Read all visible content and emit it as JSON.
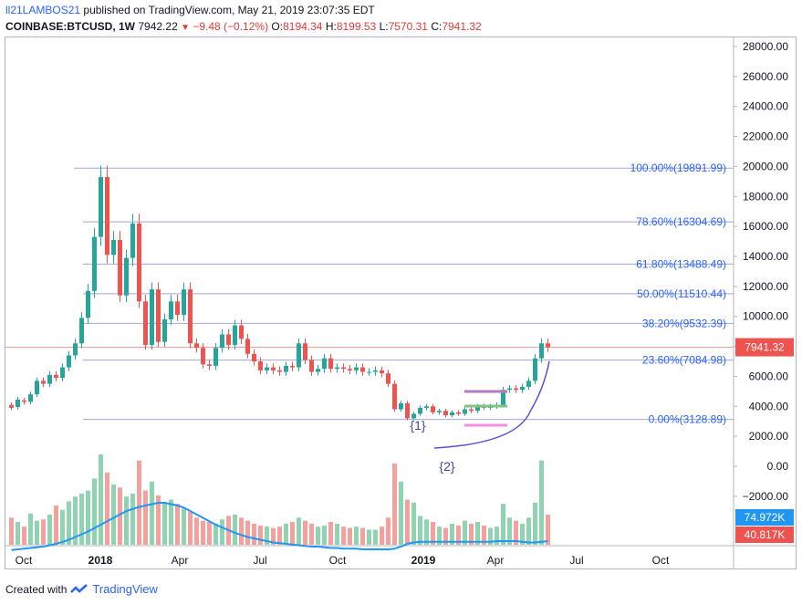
{
  "header": {
    "user": "ll21LAMBOS21",
    "published": "published on TradingView.com, May 21, 2019 23:07:35 EDT",
    "symbol": "COINBASE:BTCUSD, 1W",
    "last": "7942.22",
    "change": "−9.48 (−0.12%)",
    "o_label": "O:",
    "o_val": "8194.34",
    "h_label": "H:",
    "h_val": "8199.53",
    "l_label": "L:",
    "l_val": "7570.31",
    "c_label": "C:",
    "c_val": "7941.32"
  },
  "footer": {
    "created": "Created with",
    "brand": "TradingView"
  },
  "colors": {
    "up": "#26a69a",
    "down": "#ef5350",
    "volUp": "#8fd3b0",
    "volDown": "#f4a09d",
    "fib": "#2962ff",
    "ma": "#2196f3",
    "curve": "#5b4fd8"
  },
  "chart_data": {
    "type": "candlestick",
    "price_axis": {
      "ticks": [
        "28000.00",
        "26000.00",
        "24000.00",
        "22000.00",
        "20000.00",
        "18000.00",
        "16000.00",
        "14000.00",
        "12000.00",
        "10000.00",
        "8000.00",
        "6000.00",
        "4000.00",
        "2000.00",
        "0.00",
        "−2000.00"
      ],
      "ylim": [
        -3800,
        28800
      ]
    },
    "time_axis": [
      "Oct",
      "2018",
      "Apr",
      "Jul",
      "Oct",
      "2019",
      "Apr",
      "Jul",
      "Oct"
    ],
    "last_price_label": "7941.32",
    "volume_labels": [
      "74.972K",
      "40.817K"
    ],
    "fib_levels": [
      {
        "label": "100.00%(19891.99)",
        "price": 19892
      },
      {
        "label": "78.60%(16304.69)",
        "price": 16305
      },
      {
        "label": "61.80%(13488.49)",
        "price": 13488
      },
      {
        "label": "50.00%(11510.44)",
        "price": 11510
      },
      {
        "label": "38.20%(9532.39)",
        "price": 9532
      },
      {
        "label": "23.60%(7084.98)",
        "price": 7085
      },
      {
        "label": "0.00%(3128.89)",
        "price": 3129
      }
    ],
    "annotations": [
      "{1}",
      "{2}"
    ],
    "candles": [
      [
        4100,
        3900
      ],
      [
        3950,
        4450
      ],
      [
        4400,
        4300
      ],
      [
        4300,
        4800
      ],
      [
        4800,
        5700
      ],
      [
        5700,
        5500
      ],
      [
        5500,
        6100
      ],
      [
        6100,
        5900
      ],
      [
        5900,
        6600
      ],
      [
        6600,
        7400
      ],
      [
        7400,
        8200
      ],
      [
        8200,
        9900
      ],
      [
        9900,
        11700
      ],
      [
        11700,
        15300
      ],
      [
        15300,
        19300
      ],
      [
        19300,
        14100
      ],
      [
        14100,
        15100
      ],
      [
        15100,
        11400
      ],
      [
        11400,
        13900
      ],
      [
        13900,
        16200
      ],
      [
        16200,
        11000
      ],
      [
        11000,
        8100
      ],
      [
        8100,
        11800
      ],
      [
        11800,
        8300
      ],
      [
        8300,
        9800
      ],
      [
        9800,
        11000
      ],
      [
        11000,
        10100
      ],
      [
        10100,
        11800
      ],
      [
        11800,
        8200
      ],
      [
        8200,
        7900
      ],
      [
        7900,
        6800
      ],
      [
        6800,
        6700
      ],
      [
        6700,
        7900
      ],
      [
        7900,
        8800
      ],
      [
        8800,
        8100
      ],
      [
        8100,
        9400
      ],
      [
        9400,
        8500
      ],
      [
        8500,
        7500
      ],
      [
        7500,
        7000
      ],
      [
        7000,
        6400
      ],
      [
        6400,
        6600
      ],
      [
        6600,
        6400
      ],
      [
        6400,
        6300
      ],
      [
        6300,
        6700
      ],
      [
        6700,
        6600
      ],
      [
        6600,
        8200
      ],
      [
        8200,
        7100
      ],
      [
        7100,
        6300
      ],
      [
        6300,
        6500
      ],
      [
        6500,
        7200
      ],
      [
        7200,
        6500
      ],
      [
        6500,
        6600
      ],
      [
        6600,
        6500
      ],
      [
        6500,
        6400
      ],
      [
        6400,
        6600
      ],
      [
        6600,
        6300
      ],
      [
        6300,
        6300
      ],
      [
        6300,
        6400
      ],
      [
        6400,
        6200
      ],
      [
        6200,
        5500
      ],
      [
        5500,
        3800
      ],
      [
        3800,
        4200
      ],
      [
        4200,
        3200
      ],
      [
        3200,
        3500
      ],
      [
        3500,
        3900
      ],
      [
        3900,
        4000
      ],
      [
        4000,
        3600
      ],
      [
        3600,
        3700
      ],
      [
        3700,
        3400
      ],
      [
        3400,
        3600
      ],
      [
        3600,
        3500
      ],
      [
        3500,
        3800
      ],
      [
        3800,
        3700
      ],
      [
        3700,
        4000
      ],
      [
        4000,
        3900
      ],
      [
        3900,
        4000
      ],
      [
        4000,
        4100
      ],
      [
        4100,
        5100
      ],
      [
        5100,
        5200
      ],
      [
        5200,
        5100
      ],
      [
        5100,
        5300
      ],
      [
        5300,
        5700
      ],
      [
        5700,
        7200
      ],
      [
        7200,
        8200
      ],
      [
        8200,
        7941
      ]
    ],
    "volumes": [
      45,
      38,
      30,
      52,
      40,
      42,
      50,
      65,
      58,
      72,
      80,
      85,
      90,
      110,
      150,
      120,
      100,
      95,
      80,
      85,
      140,
      90,
      105,
      82,
      70,
      75,
      68,
      60,
      55,
      45,
      40,
      38,
      35,
      42,
      48,
      50,
      45,
      40,
      35,
      32,
      30,
      28,
      30,
      35,
      38,
      45,
      40,
      35,
      30,
      32,
      38,
      35,
      30,
      28,
      30,
      28,
      25,
      25,
      30,
      45,
      135,
      105,
      75,
      70,
      48,
      42,
      38,
      30,
      28,
      35,
      32,
      40,
      35,
      38,
      32,
      28,
      30,
      68,
      45,
      40,
      35,
      45,
      70,
      140,
      50
    ],
    "ma": [
      3,
      4,
      5,
      6,
      7,
      8,
      10,
      12,
      15,
      18,
      22,
      26,
      30,
      35,
      40,
      45,
      50,
      55,
      60,
      63,
      66,
      68,
      70,
      72,
      72,
      70,
      68,
      65,
      60,
      55,
      50,
      45,
      40,
      36,
      32,
      28,
      25,
      22,
      20,
      18,
      16,
      14,
      13,
      12,
      11,
      10,
      9,
      8,
      8,
      7,
      6,
      6,
      5,
      5,
      5,
      4,
      4,
      4,
      4,
      4,
      5,
      8,
      12,
      14,
      15,
      15,
      15,
      15,
      15,
      15,
      15,
      15,
      15,
      15,
      15,
      15,
      16,
      16,
      16,
      16,
      15,
      14,
      14,
      15,
      16
    ]
  }
}
